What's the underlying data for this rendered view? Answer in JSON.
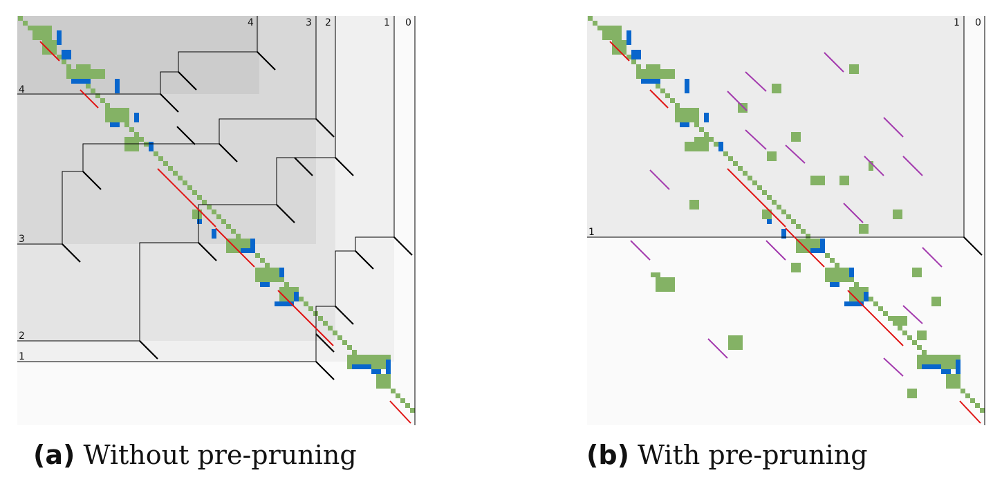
{
  "colors": {
    "green": "#84b265",
    "blue": "#0866cc",
    "red": "#e01515",
    "purple": "#a33aae",
    "line": "#000000",
    "shade_levels": [
      "#fafafa",
      "#f0f0f0",
      "#e4e4e4",
      "#d8d8d8",
      "#cccccc"
    ]
  },
  "panels": [
    {
      "letter": "(a)",
      "text": "Without pre-pruning",
      "level_labels": [
        "0",
        "1",
        "2",
        "3",
        "4"
      ]
    },
    {
      "letter": "(b)",
      "text": "With pre-pruning",
      "level_labels": [
        "0",
        "1"
      ]
    }
  ]
}
